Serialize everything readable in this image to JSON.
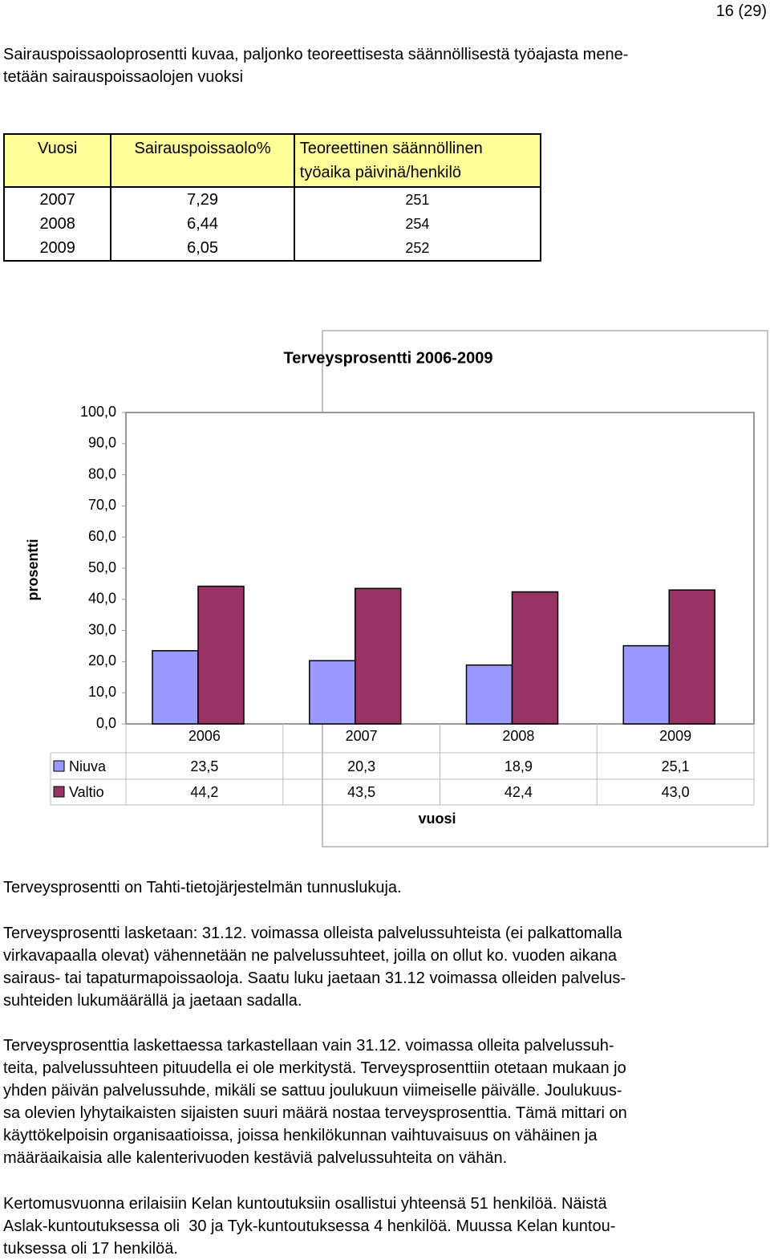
{
  "page_number": "16 (29)",
  "intro": [
    "Sairauspoissaoloprosentti kuvaa, paljonko teoreettisesta säännöllisestä työajasta mene-",
    "tetään sairauspoissaolojen vuoksi"
  ],
  "table": {
    "header": [
      "Vuosi",
      "Sairauspoissaolo%",
      "Teoreettinen säännöllinen työaika päivinä/henkilö"
    ],
    "rows": [
      [
        "2007",
        "7,29",
        "251"
      ],
      [
        "2008",
        "6,44",
        "254"
      ],
      [
        "2009",
        "6,05",
        "252"
      ]
    ]
  },
  "chart_data": {
    "type": "bar",
    "title": "Terveysprosentti 2006-2009",
    "y_axis_label": "prosentti",
    "x_axis_label": "vuosi",
    "categories": [
      "2006",
      "2007",
      "2008",
      "2009"
    ],
    "series": [
      {
        "name": "Niuva",
        "color": "#9999ff",
        "values": [
          23.5,
          20.3,
          18.9,
          25.1
        ],
        "value_labels": [
          "23,5",
          "20,3",
          "18,9",
          "25,1"
        ]
      },
      {
        "name": "Valtio",
        "color": "#993366",
        "values": [
          44.2,
          43.5,
          42.4,
          43.0
        ],
        "value_labels": [
          "44,2",
          "43,5",
          "42,4",
          "43,0"
        ]
      }
    ],
    "ylim": [
      0,
      100
    ],
    "yticks": [
      {
        "value": 0,
        "label": "0,0"
      },
      {
        "value": 10,
        "label": "10,0"
      },
      {
        "value": 20,
        "label": "20,0"
      },
      {
        "value": 30,
        "label": "30,0"
      },
      {
        "value": 40,
        "label": "40,0"
      },
      {
        "value": 50,
        "label": "50,0"
      },
      {
        "value": 60,
        "label": "60,0"
      },
      {
        "value": 70,
        "label": "70,0"
      },
      {
        "value": 80,
        "label": "80,0"
      },
      {
        "value": 90,
        "label": "90,0"
      },
      {
        "value": 100,
        "label": "100,0"
      }
    ]
  },
  "paragraphs": [
    [
      "Terveysprosentti on Tahti-tietojärjestelmän tunnuslukuja."
    ],
    [
      "Terveysprosentti lasketaan: 31.12. voimassa olleista palvelussuhteista (ei palkattomalla",
      "virkavapaalla olevat) vähennetään ne palvelussuhteet, joilla on ollut ko. vuoden aikana",
      "sairaus- tai tapaturmapoissaoloja. Saatu luku jaetaan 31.12 voimassa olleiden palvelus-",
      "suhteiden lukumäärällä ja jaetaan sadalla."
    ],
    [
      "Terveysprosenttia laskettaessa tarkastellaan vain 31.12. voimassa olleita palvelussuh-",
      "teita, palvelussuhteen pituudella ei ole merkitystä. Terveysprosenttiin otetaan mukaan jo",
      "yhden päivän palvelussuhde, mikäli se sattuu joulukuun viimeiselle päivälle. Joulukuus-",
      "sa olevien lyhytaikaisten sijaisten suuri määrä nostaa terveysprosenttia. Tämä mittari on",
      "käyttökelpoisin organisaatioissa, joissa henkilökunnan vaihtuvaisuus on vähäinen ja",
      "määräaikaisia alle kalenterivuoden kestäviä palvelussuhteita on vähän."
    ],
    [
      "Kertomusvuonna erilaisiin Kelan kuntoutuksiin osallistui yhteensä 51 henkilöä. Näistä",
      "Aslak-kuntoutuksessa oli  30 ja Tyk-kuntoutuksessa 4 henkilöä. Muussa Kelan kuntou-",
      "tuksessa oli 17 henkilöä."
    ]
  ]
}
